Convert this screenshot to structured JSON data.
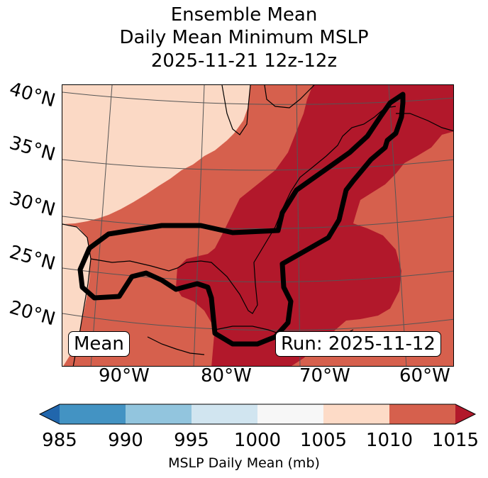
{
  "title": {
    "line1": "Ensemble Mean",
    "line2": "Daily Mean Minimum MSLP",
    "line3": "2025-11-21 12z-12z"
  },
  "map": {
    "lat_labels": [
      "40°N",
      "35°N",
      "30°N",
      "25°N",
      "20°N"
    ],
    "lon_labels": [
      "90°W",
      "80°W",
      "70°W",
      "60°W"
    ],
    "label_left": "Mean",
    "label_right": "Run: 2025-11-12",
    "colors": {
      "land_sea_high": "#fbd9c5",
      "mid": "#d6604d",
      "low": "#b2182b",
      "contour": "#000000",
      "grid": "#555555"
    }
  },
  "colorbar": {
    "label": "MSLP Daily Mean (mb)",
    "ticks": [
      "985",
      "990",
      "995",
      "1000",
      "1005",
      "1010",
      "1015"
    ],
    "bins": [
      {
        "range": "985-990",
        "color": "#4393c3"
      },
      {
        "range": "990-995",
        "color": "#92c5de"
      },
      {
        "range": "995-1000",
        "color": "#d1e5f0"
      },
      {
        "range": "1000-1005",
        "color": "#f7f7f7"
      },
      {
        "range": "1005-1010",
        "color": "#fddbc7"
      },
      {
        "range": "1010-1015",
        "color": "#d6604d"
      }
    ],
    "extend_low_color": "#2166ac",
    "extend_high_color": "#b2182b"
  }
}
